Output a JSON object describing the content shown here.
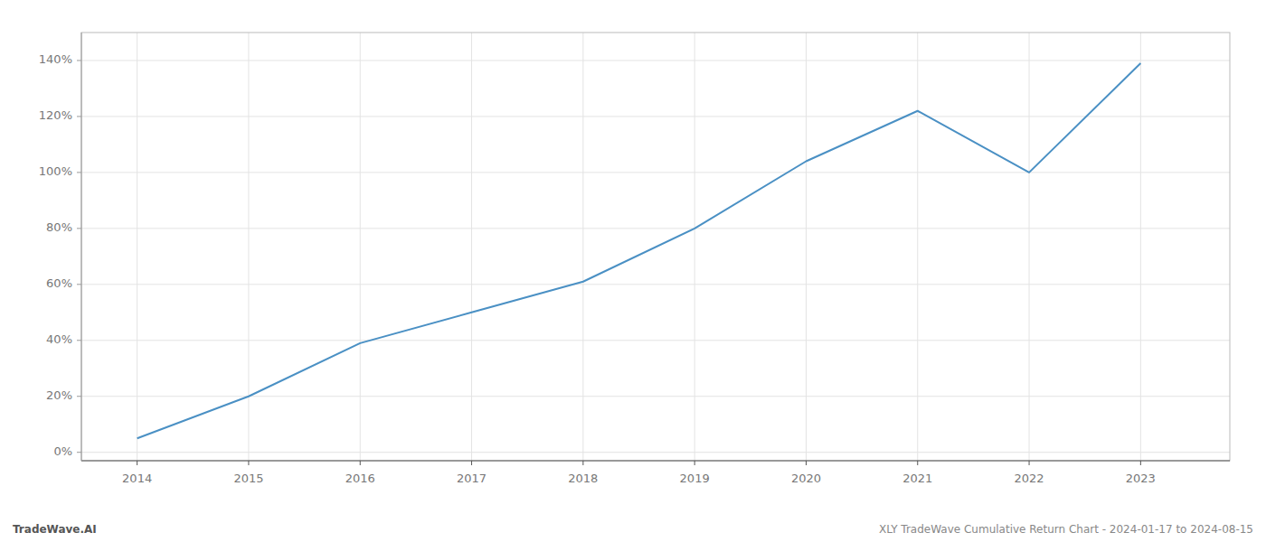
{
  "chart_data": {
    "type": "line",
    "title": "XLY TradeWave Cumulative Return Chart - 2024-01-17 to 2024-08-15",
    "annotations": [
      "TradeWave.AI"
    ],
    "x": [
      2014,
      2015,
      2016,
      2017,
      2018,
      2019,
      2020,
      2021,
      2022,
      2023
    ],
    "values": [
      5,
      20,
      39,
      50,
      61,
      80,
      104,
      122,
      100,
      139
    ],
    "color": "#4a90c4",
    "xlim": [
      2013.5,
      2023.8
    ],
    "ylim": [
      -3,
      150
    ],
    "xticks": [
      2014,
      2015,
      2016,
      2017,
      2018,
      2019,
      2020,
      2021,
      2022,
      2023
    ],
    "yticks": [
      {
        "value": 0,
        "label": "0%"
      },
      {
        "value": 20,
        "label": "20%"
      },
      {
        "value": 40,
        "label": "40%"
      },
      {
        "value": 60,
        "label": "60%"
      },
      {
        "value": 80,
        "label": "80%"
      },
      {
        "value": 100,
        "label": "100%"
      },
      {
        "value": 120,
        "label": "120%"
      },
      {
        "value": 140,
        "label": "140%"
      }
    ],
    "grid": true
  }
}
